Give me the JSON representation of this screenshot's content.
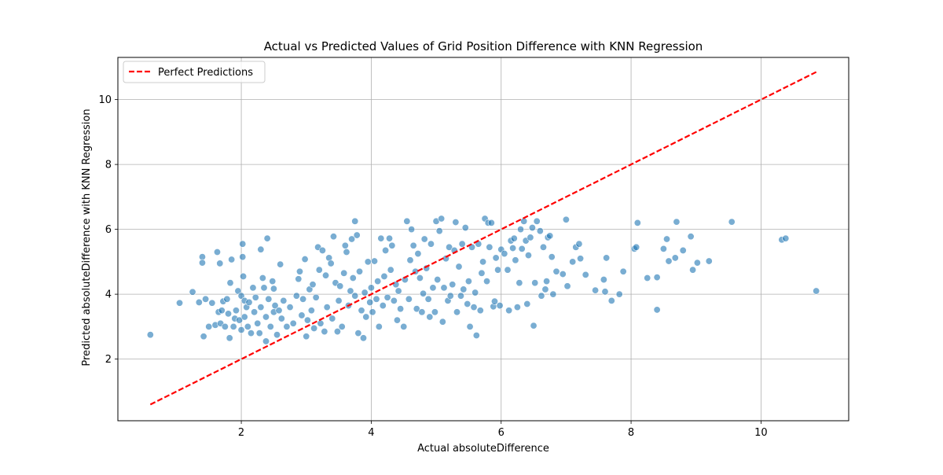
{
  "chart_data": {
    "type": "scatter",
    "title": "Actual vs Predicted Values of Grid Position Difference with KNN Regression",
    "xlabel": "Actual absoluteDifference",
    "ylabel": "Predicted absoluteDifference with KNN Regression",
    "xlim": [
      0.1,
      11.35
    ],
    "ylim": [
      0.1,
      11.3
    ],
    "xticks": [
      2,
      4,
      6,
      8,
      10
    ],
    "yticks": [
      2,
      4,
      6,
      8,
      10
    ],
    "grid": true,
    "legend_position": "upper-left",
    "colors": {
      "points": "#1f77b4",
      "line": "#ff0000",
      "grid": "#b0b0b0"
    },
    "series": [
      {
        "name": "",
        "kind": "scatter",
        "points": [
          [
            0.6,
            2.75
          ],
          [
            1.05,
            3.73
          ],
          [
            1.25,
            4.07
          ],
          [
            1.35,
            3.75
          ],
          [
            1.4,
            5.15
          ],
          [
            1.4,
            4.97
          ],
          [
            1.42,
            2.7
          ],
          [
            1.45,
            3.85
          ],
          [
            1.5,
            3.0
          ],
          [
            1.55,
            3.73
          ],
          [
            1.6,
            3.05
          ],
          [
            1.63,
            5.3
          ],
          [
            1.65,
            3.45
          ],
          [
            1.67,
            4.95
          ],
          [
            1.68,
            3.1
          ],
          [
            1.7,
            3.5
          ],
          [
            1.72,
            3.78
          ],
          [
            1.75,
            3.0
          ],
          [
            1.78,
            3.85
          ],
          [
            1.8,
            3.4
          ],
          [
            1.82,
            2.65
          ],
          [
            1.83,
            4.35
          ],
          [
            1.85,
            5.07
          ],
          [
            1.88,
            3.0
          ],
          [
            1.9,
            3.25
          ],
          [
            1.92,
            3.5
          ],
          [
            1.95,
            4.1
          ],
          [
            1.97,
            3.2
          ],
          [
            2.0,
            2.9
          ],
          [
            2.0,
            3.95
          ],
          [
            2.02,
            5.15
          ],
          [
            2.02,
            5.55
          ],
          [
            2.03,
            4.55
          ],
          [
            2.05,
            3.8
          ],
          [
            2.05,
            3.3
          ],
          [
            2.08,
            3.6
          ],
          [
            2.1,
            3.0
          ],
          [
            2.12,
            3.75
          ],
          [
            2.15,
            2.8
          ],
          [
            2.18,
            4.2
          ],
          [
            2.2,
            3.45
          ],
          [
            2.22,
            3.9
          ],
          [
            2.25,
            3.1
          ],
          [
            2.28,
            2.8
          ],
          [
            2.3,
            3.6
          ],
          [
            2.3,
            5.38
          ],
          [
            2.33,
            4.5
          ],
          [
            2.35,
            4.2
          ],
          [
            2.38,
            3.3
          ],
          [
            2.38,
            2.55
          ],
          [
            2.4,
            5.72
          ],
          [
            2.42,
            3.85
          ],
          [
            2.45,
            3.0
          ],
          [
            2.48,
            4.4
          ],
          [
            2.5,
            3.45
          ],
          [
            2.5,
            4.17
          ],
          [
            2.52,
            3.65
          ],
          [
            2.55,
            2.75
          ],
          [
            2.58,
            3.5
          ],
          [
            2.6,
            4.92
          ],
          [
            2.62,
            3.25
          ],
          [
            2.65,
            3.8
          ],
          [
            2.7,
            3.0
          ],
          [
            2.75,
            3.6
          ],
          [
            2.8,
            3.1
          ],
          [
            2.85,
            3.95
          ],
          [
            2.88,
            4.47
          ],
          [
            2.9,
            4.7
          ],
          [
            2.93,
            3.35
          ],
          [
            2.95,
            3.85
          ],
          [
            2.98,
            5.08
          ],
          [
            3.0,
            2.7
          ],
          [
            3.02,
            3.2
          ],
          [
            3.05,
            4.15
          ],
          [
            3.08,
            3.5
          ],
          [
            3.1,
            4.3
          ],
          [
            3.12,
            2.95
          ],
          [
            3.15,
            3.9
          ],
          [
            3.18,
            5.45
          ],
          [
            3.2,
            4.75
          ],
          [
            3.22,
            3.1
          ],
          [
            3.25,
            5.35
          ],
          [
            3.28,
            2.85
          ],
          [
            3.3,
            4.58
          ],
          [
            3.32,
            3.6
          ],
          [
            3.35,
            5.12
          ],
          [
            3.38,
            4.95
          ],
          [
            3.4,
            3.25
          ],
          [
            3.42,
            5.78
          ],
          [
            3.45,
            4.35
          ],
          [
            3.48,
            2.85
          ],
          [
            3.5,
            3.8
          ],
          [
            3.52,
            4.25
          ],
          [
            3.55,
            3.0
          ],
          [
            3.58,
            4.65
          ],
          [
            3.6,
            5.5
          ],
          [
            3.62,
            5.3
          ],
          [
            3.65,
            3.65
          ],
          [
            3.68,
            4.1
          ],
          [
            3.7,
            5.7
          ],
          [
            3.72,
            4.5
          ],
          [
            3.75,
            6.25
          ],
          [
            3.75,
            3.95
          ],
          [
            3.78,
            5.82
          ],
          [
            3.8,
            2.8
          ],
          [
            3.82,
            4.7
          ],
          [
            3.85,
            3.5
          ],
          [
            3.88,
            2.65
          ],
          [
            3.9,
            4.05
          ],
          [
            3.92,
            3.3
          ],
          [
            3.95,
            5.0
          ],
          [
            3.98,
            3.75
          ],
          [
            4.0,
            4.2
          ],
          [
            4.02,
            3.45
          ],
          [
            4.05,
            5.02
          ],
          [
            4.08,
            3.85
          ],
          [
            4.1,
            4.4
          ],
          [
            4.12,
            3.0
          ],
          [
            4.15,
            5.72
          ],
          [
            4.18,
            3.65
          ],
          [
            4.2,
            4.55
          ],
          [
            4.22,
            5.35
          ],
          [
            4.25,
            3.9
          ],
          [
            4.28,
            5.72
          ],
          [
            4.3,
            4.75
          ],
          [
            4.32,
            5.5
          ],
          [
            4.35,
            3.8
          ],
          [
            4.38,
            4.3
          ],
          [
            4.4,
            3.2
          ],
          [
            4.42,
            4.1
          ],
          [
            4.45,
            3.55
          ],
          [
            4.5,
            3.0
          ],
          [
            4.52,
            4.45
          ],
          [
            4.55,
            6.25
          ],
          [
            4.58,
            3.85
          ],
          [
            4.6,
            5.05
          ],
          [
            4.62,
            6.0
          ],
          [
            4.65,
            5.5
          ],
          [
            4.68,
            4.7
          ],
          [
            4.7,
            3.55
          ],
          [
            4.72,
            5.25
          ],
          [
            4.75,
            4.5
          ],
          [
            4.78,
            3.45
          ],
          [
            4.8,
            4.02
          ],
          [
            4.82,
            5.7
          ],
          [
            4.85,
            4.8
          ],
          [
            4.88,
            3.85
          ],
          [
            4.9,
            3.3
          ],
          [
            4.92,
            5.55
          ],
          [
            4.95,
            4.2
          ],
          [
            4.98,
            3.45
          ],
          [
            5.0,
            6.25
          ],
          [
            5.02,
            4.45
          ],
          [
            5.05,
            5.95
          ],
          [
            5.08,
            6.33
          ],
          [
            5.1,
            3.15
          ],
          [
            5.12,
            4.2
          ],
          [
            5.15,
            5.1
          ],
          [
            5.18,
            3.8
          ],
          [
            5.2,
            5.45
          ],
          [
            5.22,
            3.95
          ],
          [
            5.25,
            4.3
          ],
          [
            5.28,
            5.35
          ],
          [
            5.3,
            6.22
          ],
          [
            5.32,
            3.45
          ],
          [
            5.35,
            4.85
          ],
          [
            5.38,
            3.95
          ],
          [
            5.4,
            5.55
          ],
          [
            5.42,
            4.15
          ],
          [
            5.45,
            6.05
          ],
          [
            5.48,
            3.7
          ],
          [
            5.5,
            4.4
          ],
          [
            5.52,
            3.0
          ],
          [
            5.55,
            5.45
          ],
          [
            5.58,
            3.6
          ],
          [
            5.6,
            4.05
          ],
          [
            5.62,
            2.73
          ],
          [
            5.65,
            5.55
          ],
          [
            5.68,
            3.5
          ],
          [
            5.7,
            4.65
          ],
          [
            5.72,
            5.0
          ],
          [
            5.75,
            6.33
          ],
          [
            5.78,
            4.4
          ],
          [
            5.8,
            6.2
          ],
          [
            5.82,
            5.45
          ],
          [
            5.85,
            6.2
          ],
          [
            5.88,
            3.62
          ],
          [
            5.9,
            3.78
          ],
          [
            5.92,
            5.12
          ],
          [
            5.95,
            4.75
          ],
          [
            5.98,
            3.65
          ],
          [
            6.0,
            5.38
          ],
          [
            6.05,
            5.25
          ],
          [
            6.1,
            4.75
          ],
          [
            6.12,
            3.5
          ],
          [
            6.15,
            5.65
          ],
          [
            6.18,
            5.42
          ],
          [
            6.2,
            5.72
          ],
          [
            6.22,
            5.05
          ],
          [
            6.25,
            3.6
          ],
          [
            6.28,
            4.35
          ],
          [
            6.3,
            6.0
          ],
          [
            6.32,
            5.4
          ],
          [
            6.35,
            6.25
          ],
          [
            6.38,
            5.65
          ],
          [
            6.4,
            3.7
          ],
          [
            6.42,
            5.2
          ],
          [
            6.45,
            5.75
          ],
          [
            6.48,
            6.05
          ],
          [
            6.5,
            3.03
          ],
          [
            6.52,
            4.35
          ],
          [
            6.55,
            6.25
          ],
          [
            6.6,
            5.95
          ],
          [
            6.62,
            3.95
          ],
          [
            6.65,
            5.45
          ],
          [
            6.68,
            4.15
          ],
          [
            6.7,
            4.4
          ],
          [
            6.72,
            5.75
          ],
          [
            6.75,
            5.8
          ],
          [
            6.78,
            5.15
          ],
          [
            6.8,
            4.0
          ],
          [
            6.85,
            4.7
          ],
          [
            6.95,
            4.62
          ],
          [
            7.0,
            6.3
          ],
          [
            7.02,
            4.25
          ],
          [
            7.1,
            5.0
          ],
          [
            7.15,
            5.45
          ],
          [
            7.2,
            5.55
          ],
          [
            7.22,
            5.1
          ],
          [
            7.3,
            4.6
          ],
          [
            7.45,
            4.12
          ],
          [
            7.58,
            4.45
          ],
          [
            7.6,
            4.08
          ],
          [
            7.62,
            5.12
          ],
          [
            7.7,
            3.8
          ],
          [
            7.82,
            4.0
          ],
          [
            7.88,
            4.7
          ],
          [
            8.05,
            5.4
          ],
          [
            8.08,
            5.45
          ],
          [
            8.1,
            6.2
          ],
          [
            8.25,
            4.5
          ],
          [
            8.4,
            4.52
          ],
          [
            8.4,
            3.52
          ],
          [
            8.5,
            5.4
          ],
          [
            8.55,
            5.7
          ],
          [
            8.58,
            5.02
          ],
          [
            8.68,
            5.12
          ],
          [
            8.7,
            6.23
          ],
          [
            8.8,
            5.35
          ],
          [
            8.92,
            5.78
          ],
          [
            8.95,
            4.75
          ],
          [
            9.02,
            4.97
          ],
          [
            9.2,
            5.02
          ],
          [
            9.55,
            6.23
          ],
          [
            10.32,
            5.68
          ],
          [
            10.38,
            5.72
          ],
          [
            10.85,
            4.1
          ]
        ]
      },
      {
        "name": "Perfect Predictions",
        "kind": "line",
        "points": [
          [
            0.6,
            0.6
          ],
          [
            10.85,
            10.85
          ]
        ]
      }
    ]
  }
}
